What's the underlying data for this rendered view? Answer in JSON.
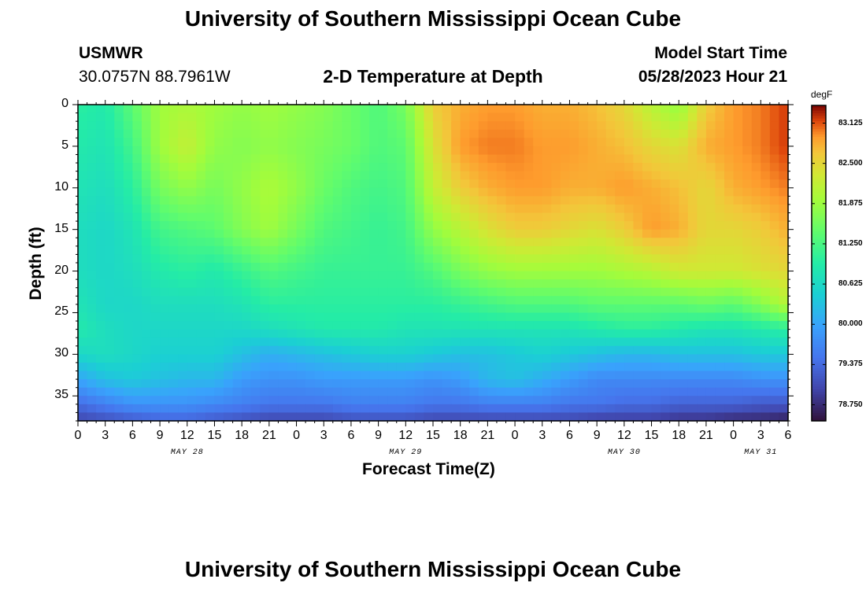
{
  "page": {
    "top_title": "University of Southern Mississippi Ocean Cube",
    "bottom_title": "University of Southern Mississippi Ocean Cube",
    "station": "USMWR",
    "location": "30.0757N  88.7961W",
    "subtitle": "2-D Temperature at Depth",
    "model_label": "Model Start Time",
    "model_time": "05/28/2023 Hour 21"
  },
  "chart_data": {
    "type": "heatmap",
    "title": "2-D Temperature at Depth",
    "xlabel": "Forecast Time(Z)",
    "ylabel": "Depth (ft)",
    "x_hours_range": [
      0,
      78
    ],
    "y_depth_range": [
      0,
      38
    ],
    "x_tick_labels": [
      "0",
      "3",
      "6",
      "9",
      "12",
      "15",
      "18",
      "21",
      "0",
      "3",
      "6",
      "9",
      "12",
      "15",
      "18",
      "21",
      "0",
      "3",
      "6",
      "9",
      "12",
      "15",
      "18",
      "21",
      "0",
      "3",
      "6"
    ],
    "day_labels": [
      {
        "label": "MAY 28",
        "hour": 12
      },
      {
        "label": "MAY 29",
        "hour": 36
      },
      {
        "label": "MAY 30",
        "hour": 60
      },
      {
        "label": "MAY 31",
        "hour": 75
      }
    ],
    "y_ticks": [
      0,
      5,
      10,
      15,
      20,
      25,
      30,
      35
    ],
    "y_tick_labels": [
      "0",
      "5",
      "10",
      "15",
      "20",
      "25",
      "30",
      "35"
    ],
    "colorbar": {
      "units": "degF",
      "min": 78.5,
      "max": 83.4,
      "tick_values": [
        83.125,
        82.5,
        81.875,
        81.25,
        80.625,
        80.0,
        79.375,
        78.75
      ],
      "tick_labels": [
        "83.125",
        "82.500",
        "81.875",
        "81.250",
        "80.625",
        "80.000",
        "79.375",
        "78.750"
      ]
    },
    "grid_depths_ft": [
      0,
      5,
      10,
      15,
      20,
      24,
      27,
      30,
      33,
      36,
      38
    ],
    "grid_hours": [
      0,
      3,
      6,
      9,
      12,
      15,
      18,
      21,
      24,
      27,
      30,
      33,
      36,
      39,
      42,
      45,
      48,
      51,
      54,
      57,
      60,
      63,
      66,
      69,
      72,
      75,
      78
    ],
    "temperature_degF": [
      [
        81.0,
        80.9,
        81.4,
        81.9,
        82.0,
        81.9,
        81.8,
        81.9,
        81.8,
        81.7,
        81.5,
        81.3,
        81.6,
        82.6,
        82.8,
        82.9,
        82.9,
        82.8,
        82.8,
        82.7,
        82.5,
        82.1,
        81.8,
        82.6,
        82.9,
        83.0,
        83.2
      ],
      [
        80.9,
        80.8,
        81.2,
        81.9,
        82.2,
        81.8,
        81.7,
        81.8,
        81.7,
        81.6,
        81.5,
        81.3,
        81.4,
        82.4,
        82.9,
        83.0,
        83.0,
        82.9,
        82.9,
        82.8,
        82.7,
        82.5,
        82.4,
        82.8,
        82.9,
        83.0,
        83.2
      ],
      [
        80.8,
        80.7,
        81.0,
        81.6,
        81.8,
        81.6,
        81.8,
        82.0,
        81.8,
        81.5,
        81.3,
        81.2,
        81.3,
        82.2,
        82.6,
        82.8,
        82.9,
        82.9,
        82.8,
        82.8,
        82.9,
        82.8,
        82.7,
        82.5,
        82.8,
        82.9,
        83.0
      ],
      [
        80.7,
        80.6,
        80.8,
        81.2,
        81.3,
        81.4,
        81.7,
        81.9,
        81.6,
        81.3,
        81.2,
        81.1,
        81.2,
        81.8,
        82.1,
        82.4,
        82.6,
        82.6,
        82.5,
        82.4,
        82.6,
        82.9,
        82.8,
        82.5,
        82.5,
        82.6,
        82.8
      ],
      [
        80.7,
        80.6,
        80.7,
        80.9,
        81.0,
        80.9,
        81.1,
        81.3,
        81.2,
        81.1,
        81.1,
        81.1,
        81.1,
        81.3,
        81.6,
        81.8,
        81.9,
        81.9,
        81.9,
        81.9,
        82.0,
        82.1,
        82.3,
        82.3,
        82.3,
        82.4,
        82.5
      ],
      [
        80.8,
        80.6,
        80.6,
        80.7,
        80.7,
        80.7,
        80.8,
        81.0,
        81.0,
        81.0,
        81.0,
        81.0,
        81.0,
        81.0,
        81.1,
        81.2,
        81.3,
        81.3,
        81.3,
        81.4,
        81.4,
        81.4,
        81.4,
        81.5,
        81.4,
        81.7,
        82.1
      ],
      [
        80.9,
        80.7,
        80.6,
        80.6,
        80.6,
        80.6,
        80.6,
        80.7,
        80.8,
        80.9,
        80.9,
        80.9,
        80.8,
        80.8,
        80.8,
        80.8,
        80.8,
        80.8,
        80.8,
        80.9,
        81.0,
        81.0,
        80.9,
        80.8,
        80.8,
        80.9,
        81.0
      ],
      [
        80.6,
        80.7,
        80.6,
        80.5,
        80.5,
        80.5,
        80.3,
        80.1,
        80.2,
        80.3,
        80.4,
        80.5,
        80.5,
        80.4,
        80.3,
        80.3,
        80.4,
        80.5,
        80.4,
        80.3,
        80.2,
        80.2,
        80.3,
        80.3,
        80.3,
        80.4,
        80.4
      ],
      [
        80.0,
        80.3,
        80.4,
        80.3,
        80.2,
        80.2,
        79.9,
        79.8,
        79.8,
        79.9,
        79.9,
        79.9,
        79.9,
        79.8,
        79.9,
        80.2,
        80.3,
        80.1,
        79.9,
        79.7,
        79.7,
        79.7,
        79.7,
        79.7,
        79.7,
        79.8,
        79.8
      ],
      [
        79.4,
        79.6,
        79.8,
        79.8,
        79.8,
        79.7,
        79.6,
        79.5,
        79.5,
        79.5,
        79.6,
        79.6,
        79.6,
        79.5,
        79.5,
        79.6,
        79.6,
        79.6,
        79.5,
        79.5,
        79.4,
        79.4,
        79.3,
        79.3,
        79.3,
        79.2,
        79.2
      ],
      [
        79.0,
        79.1,
        79.2,
        79.3,
        79.3,
        79.2,
        79.1,
        79.0,
        79.0,
        79.0,
        79.1,
        79.1,
        79.1,
        79.0,
        79.0,
        79.0,
        79.0,
        79.0,
        79.0,
        78.9,
        78.9,
        78.9,
        78.8,
        78.8,
        78.7,
        78.7,
        78.6
      ]
    ]
  }
}
